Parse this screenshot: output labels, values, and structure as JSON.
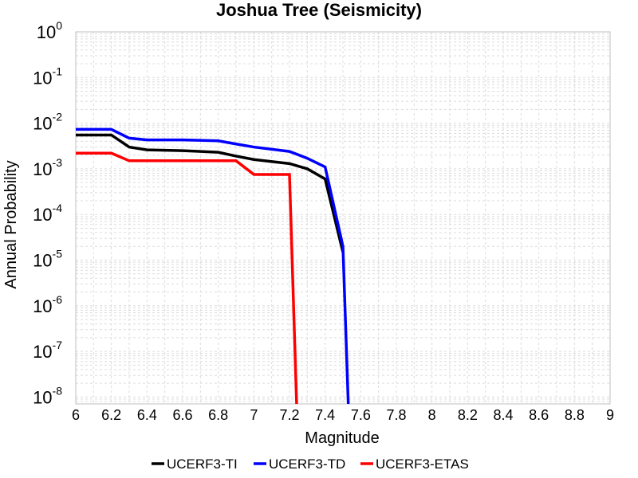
{
  "chart_data": {
    "type": "line",
    "title": "Joshua Tree (Seismicity)",
    "xlabel": "Magnitude",
    "ylabel": "Annual Probability",
    "xlim": [
      6,
      9
    ],
    "ylim_log10": [
      -8.15,
      0
    ],
    "y_scale": "log",
    "grid": true,
    "legend_position": "bottom",
    "x_ticks": [
      "6",
      "6.2",
      "6.4",
      "6.6",
      "6.8",
      "7",
      "7.2",
      "7.4",
      "7.6",
      "7.8",
      "8",
      "8.2",
      "8.4",
      "8.6",
      "8.8",
      "9"
    ],
    "y_ticks": [
      {
        "base": "10",
        "exp": "0"
      },
      {
        "base": "10",
        "exp": "-1"
      },
      {
        "base": "10",
        "exp": "-2"
      },
      {
        "base": "10",
        "exp": "-3"
      },
      {
        "base": "10",
        "exp": "-4"
      },
      {
        "base": "10",
        "exp": "-5"
      },
      {
        "base": "10",
        "exp": "-6"
      },
      {
        "base": "10",
        "exp": "-7"
      },
      {
        "base": "10",
        "exp": "-8"
      }
    ],
    "series": [
      {
        "name": "UCERF3-TI",
        "color": "#000000",
        "x": [
          6.0,
          6.2,
          6.3,
          6.4,
          6.6,
          6.8,
          6.9,
          7.0,
          7.2,
          7.3,
          7.4,
          7.5
        ],
        "y": [
          0.0055,
          0.0055,
          0.003,
          0.0026,
          0.0025,
          0.0023,
          0.0019,
          0.0016,
          0.0013,
          0.001,
          0.0006,
          1.5e-05
        ]
      },
      {
        "name": "UCERF3-TD",
        "color": "#0000ff",
        "x": [
          6.0,
          6.2,
          6.3,
          6.4,
          6.6,
          6.8,
          6.9,
          7.0,
          7.2,
          7.3,
          7.4,
          7.5,
          7.53
        ],
        "y": [
          0.0073,
          0.0073,
          0.0047,
          0.0043,
          0.0043,
          0.0041,
          0.0035,
          0.003,
          0.0024,
          0.0017,
          0.0011,
          2e-05,
          7e-09
        ]
      },
      {
        "name": "UCERF3-ETAS",
        "color": "#ff0000",
        "x": [
          6.0,
          6.2,
          6.3,
          6.4,
          6.6,
          6.8,
          6.9,
          7.0,
          7.2,
          7.24
        ],
        "y": [
          0.0022,
          0.0022,
          0.0015,
          0.0015,
          0.0015,
          0.0015,
          0.0015,
          0.00075,
          0.00075,
          7e-09
        ]
      }
    ]
  }
}
